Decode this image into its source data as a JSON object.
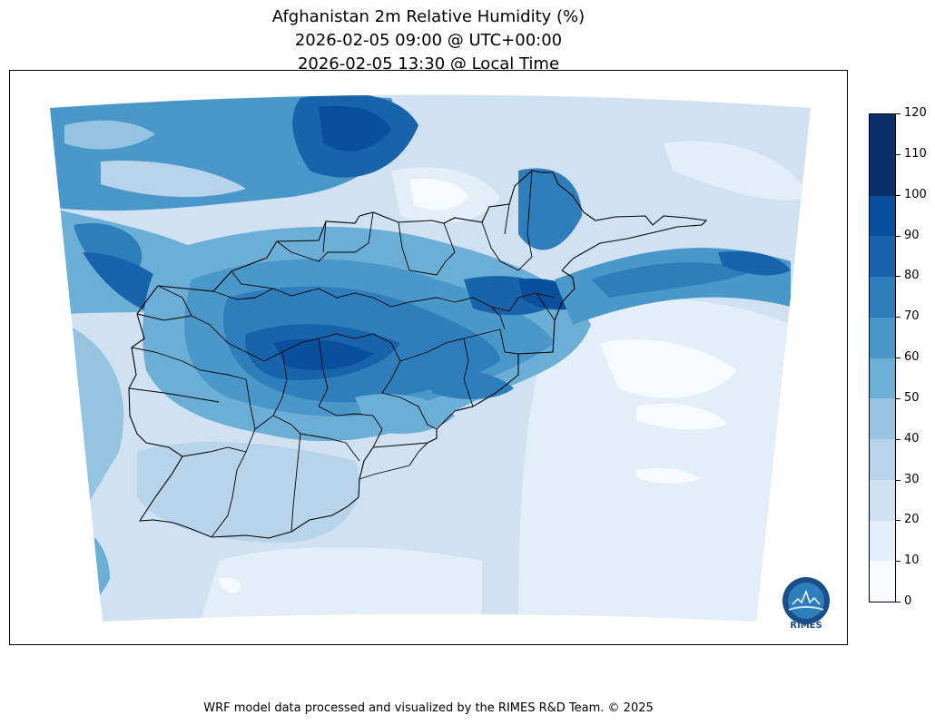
{
  "title": {
    "line1": "Afghanistan 2m Relative Humidity (%)",
    "line2": "2026-02-05 09:00 @ UTC+00:00",
    "line3": "2026-02-05 13:30 @ Local Time"
  },
  "colorbar": {
    "min": 0,
    "max": 120,
    "ticks": [
      "0",
      "10",
      "20",
      "30",
      "40",
      "50",
      "60",
      "70",
      "80",
      "90",
      "100",
      "110",
      "120"
    ],
    "colors": [
      "#f7fbff",
      "#e3eef9",
      "#d0e1f2",
      "#b7d4ea",
      "#94c4df",
      "#6baed6",
      "#4a98c9",
      "#2e7ebc",
      "#1764ab",
      "#08509b",
      "#08306b",
      "#08306b"
    ]
  },
  "logo": {
    "text": "RIMES"
  },
  "footer": "WRF model data processed and visualized by the RIMES R&D Team. © 2025"
}
